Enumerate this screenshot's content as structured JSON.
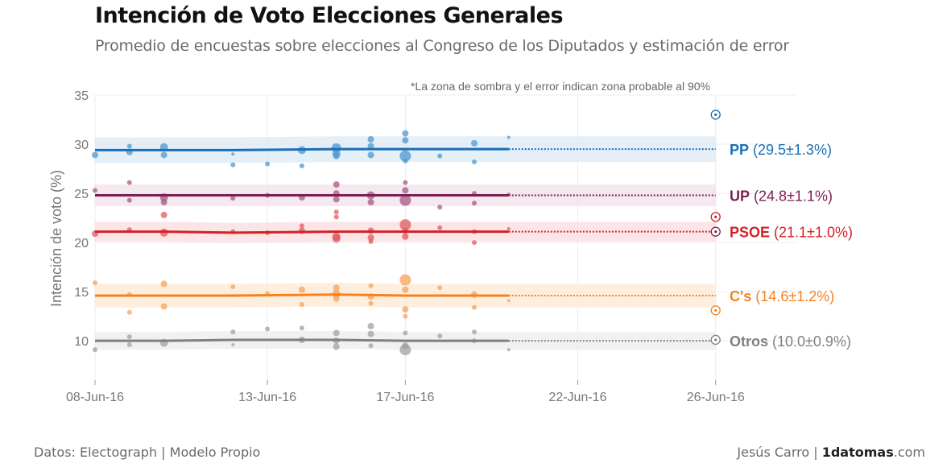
{
  "header": {
    "title": "Intención de Voto Elecciones Generales",
    "subtitle": "Promedio de encuestas sobre elecciones al Congreso de los Diputados y estimación de error"
  },
  "footer": {
    "source": "Datos: Electograph | Modelo Propio",
    "author": "Jesús Carro | ",
    "brand": "1datomas",
    "brand_suffix": ".com"
  },
  "chart_data": {
    "type": "line",
    "note": "*La zona de sombra y el error indican zona probable al 90%",
    "ylabel": "Intención de voto (%)",
    "ylim": [
      6,
      35
    ],
    "yticks": [
      10,
      15,
      20,
      25,
      30,
      35
    ],
    "xlim": [
      "2016-06-08",
      "2016-06-26"
    ],
    "xticks": [
      {
        "date": "2016-06-08",
        "label": "08-Jun-16"
      },
      {
        "date": "2016-06-13",
        "label": "13-Jun-16"
      },
      {
        "date": "2016-06-17",
        "label": "17-Jun-16"
      },
      {
        "date": "2016-06-22",
        "label": "22-Jun-16"
      },
      {
        "date": "2016-06-26",
        "label": "26-Jun-16"
      }
    ],
    "grid": true,
    "data_end": "2016-06-20",
    "result_date": "2016-06-26",
    "series": [
      {
        "name": "PP",
        "value_label": "(29.5±1.3%)",
        "color": "#1a6fb5",
        "point_color": "#4d98d0",
        "band_color": "#dbe9f6",
        "trend": [
          29.4,
          29.4,
          29.4,
          29.5,
          29.5,
          29.5
        ],
        "error": 1.3,
        "result": 33.0,
        "points": [
          [
            "2016-06-08",
            28.9,
            4
          ],
          [
            "2016-06-09",
            29.2,
            4
          ],
          [
            "2016-06-09",
            29.8,
            3
          ],
          [
            "2016-06-10",
            29.7,
            5
          ],
          [
            "2016-06-10",
            28.9,
            4
          ],
          [
            "2016-06-12",
            29.0,
            2
          ],
          [
            "2016-06-12",
            27.9,
            3
          ],
          [
            "2016-06-13",
            28.0,
            3
          ],
          [
            "2016-06-14",
            29.4,
            5
          ],
          [
            "2016-06-14",
            27.8,
            3
          ],
          [
            "2016-06-15",
            29.6,
            6
          ],
          [
            "2016-06-15",
            28.8,
            4
          ],
          [
            "2016-06-15",
            29.0,
            5
          ],
          [
            "2016-06-16",
            30.5,
            4
          ],
          [
            "2016-06-16",
            29.8,
            4
          ],
          [
            "2016-06-16",
            28.9,
            4
          ],
          [
            "2016-06-17",
            31.1,
            4
          ],
          [
            "2016-06-17",
            30.4,
            4
          ],
          [
            "2016-06-17",
            28.8,
            7
          ],
          [
            "2016-06-17",
            28.3,
            3
          ],
          [
            "2016-06-18",
            28.8,
            3
          ],
          [
            "2016-06-19",
            30.1,
            4
          ],
          [
            "2016-06-19",
            28.2,
            3
          ],
          [
            "2016-06-20",
            30.7,
            2
          ]
        ]
      },
      {
        "name": "UP",
        "value_label": "(24.8±1.1%)",
        "color": "#7b1f55",
        "point_color": "#a55a86",
        "band_color": "#f1e0ea",
        "trend": [
          24.8,
          24.8,
          24.8,
          24.8,
          24.8,
          24.8
        ],
        "error": 1.1,
        "result": 21.1,
        "points": [
          [
            "2016-06-08",
            25.3,
            3
          ],
          [
            "2016-06-09",
            26.1,
            3
          ],
          [
            "2016-06-09",
            24.3,
            3
          ],
          [
            "2016-06-10",
            24.6,
            5
          ],
          [
            "2016-06-10",
            24.1,
            4
          ],
          [
            "2016-06-12",
            24.5,
            3
          ],
          [
            "2016-06-13",
            24.8,
            3
          ],
          [
            "2016-06-14",
            24.6,
            4
          ],
          [
            "2016-06-15",
            25.9,
            4
          ],
          [
            "2016-06-15",
            25.0,
            4
          ],
          [
            "2016-06-15",
            24.4,
            4
          ],
          [
            "2016-06-16",
            24.8,
            5
          ],
          [
            "2016-06-16",
            24.1,
            4
          ],
          [
            "2016-06-17",
            26.1,
            3
          ],
          [
            "2016-06-17",
            25.3,
            4
          ],
          [
            "2016-06-17",
            24.3,
            7
          ],
          [
            "2016-06-18",
            23.6,
            3
          ],
          [
            "2016-06-19",
            25.0,
            3
          ],
          [
            "2016-06-19",
            24.0,
            3
          ],
          [
            "2016-06-20",
            24.9,
            2
          ]
        ]
      },
      {
        "name": "PSOE",
        "value_label": "(21.1±1.0%)",
        "color": "#d42027",
        "point_color": "#e05a5e",
        "band_color": "#f9dcdd",
        "trend": [
          21.1,
          21.1,
          21.0,
          21.1,
          21.1,
          21.1
        ],
        "error": 1.0,
        "result": 22.6,
        "points": [
          [
            "2016-06-08",
            20.9,
            4
          ],
          [
            "2016-06-09",
            21.3,
            3
          ],
          [
            "2016-06-10",
            22.8,
            4
          ],
          [
            "2016-06-10",
            21.0,
            5
          ],
          [
            "2016-06-12",
            21.1,
            3
          ],
          [
            "2016-06-13",
            21.0,
            3
          ],
          [
            "2016-06-14",
            21.7,
            3
          ],
          [
            "2016-06-14",
            21.2,
            4
          ],
          [
            "2016-06-15",
            23.1,
            3
          ],
          [
            "2016-06-15",
            22.6,
            3
          ],
          [
            "2016-06-15",
            20.6,
            5
          ],
          [
            "2016-06-15",
            20.4,
            5
          ],
          [
            "2016-06-16",
            21.2,
            4
          ],
          [
            "2016-06-16",
            20.5,
            4
          ],
          [
            "2016-06-16",
            20.1,
            3
          ],
          [
            "2016-06-17",
            21.8,
            7
          ],
          [
            "2016-06-17",
            21.2,
            4
          ],
          [
            "2016-06-17",
            20.6,
            4
          ],
          [
            "2016-06-18",
            21.5,
            3
          ],
          [
            "2016-06-19",
            21.1,
            3
          ],
          [
            "2016-06-19",
            20.0,
            3
          ],
          [
            "2016-06-20",
            21.4,
            2
          ]
        ]
      },
      {
        "name": "C's",
        "value_label": "(14.6±1.2%)",
        "color": "#f58220",
        "point_color": "#f7a25a",
        "band_color": "#fde8d2",
        "trend": [
          14.6,
          14.6,
          14.6,
          14.7,
          14.6,
          14.6
        ],
        "error": 1.2,
        "result": 13.1,
        "points": [
          [
            "2016-06-08",
            15.9,
            3
          ],
          [
            "2016-06-09",
            14.7,
            3
          ],
          [
            "2016-06-09",
            12.9,
            3
          ],
          [
            "2016-06-10",
            15.8,
            4
          ],
          [
            "2016-06-10",
            13.5,
            4
          ],
          [
            "2016-06-12",
            15.5,
            3
          ],
          [
            "2016-06-13",
            14.8,
            3
          ],
          [
            "2016-06-14",
            15.2,
            4
          ],
          [
            "2016-06-14",
            13.7,
            3
          ],
          [
            "2016-06-15",
            15.4,
            4
          ],
          [
            "2016-06-15",
            14.8,
            5
          ],
          [
            "2016-06-15",
            14.3,
            4
          ],
          [
            "2016-06-16",
            15.6,
            3
          ],
          [
            "2016-06-16",
            14.5,
            4
          ],
          [
            "2016-06-16",
            13.8,
            3
          ],
          [
            "2016-06-17",
            16.2,
            7
          ],
          [
            "2016-06-17",
            15.2,
            4
          ],
          [
            "2016-06-17",
            13.2,
            4
          ],
          [
            "2016-06-17",
            12.5,
            3
          ],
          [
            "2016-06-18",
            15.4,
            3
          ],
          [
            "2016-06-19",
            14.7,
            4
          ],
          [
            "2016-06-19",
            13.4,
            3
          ],
          [
            "2016-06-20",
            14.1,
            2
          ]
        ]
      },
      {
        "name": "Otros",
        "value_label": "(10.0±0.9%)",
        "color": "#808080",
        "point_color": "#a0a0a0",
        "band_color": "#ececec",
        "trend": [
          10.0,
          10.0,
          10.1,
          10.1,
          10.0,
          10.0
        ],
        "error": 0.9,
        "result": 10.1,
        "points": [
          [
            "2016-06-08",
            9.1,
            3
          ],
          [
            "2016-06-09",
            10.4,
            3
          ],
          [
            "2016-06-09",
            9.6,
            3
          ],
          [
            "2016-06-10",
            9.8,
            5
          ],
          [
            "2016-06-12",
            10.9,
            3
          ],
          [
            "2016-06-12",
            9.6,
            2
          ],
          [
            "2016-06-13",
            11.2,
            3
          ],
          [
            "2016-06-14",
            11.3,
            3
          ],
          [
            "2016-06-14",
            10.1,
            4
          ],
          [
            "2016-06-15",
            10.8,
            4
          ],
          [
            "2016-06-15",
            10.0,
            4
          ],
          [
            "2016-06-15",
            9.4,
            4
          ],
          [
            "2016-06-16",
            11.5,
            4
          ],
          [
            "2016-06-16",
            10.7,
            4
          ],
          [
            "2016-06-16",
            9.5,
            3
          ],
          [
            "2016-06-17",
            10.8,
            3
          ],
          [
            "2016-06-17",
            9.1,
            7
          ],
          [
            "2016-06-17",
            9.5,
            4
          ],
          [
            "2016-06-18",
            10.5,
            3
          ],
          [
            "2016-06-19",
            10.9,
            3
          ],
          [
            "2016-06-19",
            10.0,
            3
          ],
          [
            "2016-06-20",
            9.1,
            2
          ]
        ]
      }
    ]
  }
}
